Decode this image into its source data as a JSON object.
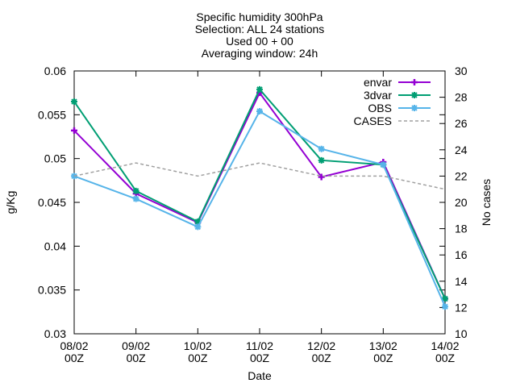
{
  "chart_data": {
    "type": "line",
    "title_lines": [
      "Specific humidity 300hPa",
      "Selection: ALL      24 stations",
      "Used 00 + 00",
      "Averaging window: 24h"
    ],
    "xlabel": "Date",
    "ylabel": "g/Kg",
    "y2label": "No cases",
    "categories": [
      [
        "08/02",
        "00Z"
      ],
      [
        "09/02",
        "00Z"
      ],
      [
        "10/02",
        "00Z"
      ],
      [
        "11/02",
        "00Z"
      ],
      [
        "12/02",
        "00Z"
      ],
      [
        "13/02",
        "00Z"
      ],
      [
        "14/02",
        "00Z"
      ]
    ],
    "ylim": [
      0.03,
      0.06
    ],
    "yticks": [
      "0.03",
      "0.035",
      "0.04",
      "0.045",
      "0.05",
      "0.055",
      "0.06"
    ],
    "y2lim": [
      10,
      30
    ],
    "y2ticks": [
      "10",
      "12",
      "14",
      "16",
      "18",
      "20",
      "22",
      "24",
      "26",
      "28",
      "30"
    ],
    "grid": false,
    "legend_position": "top-right",
    "series": [
      {
        "name": "envar",
        "color": "#9400d3",
        "values": [
          0.0532,
          0.046,
          0.0427,
          0.0575,
          0.0479,
          0.0496,
          0.034
        ],
        "marker": "plus",
        "axis": "y"
      },
      {
        "name": "3dvar",
        "color": "#009e73",
        "values": [
          0.0565,
          0.0463,
          0.0428,
          0.0579,
          0.0498,
          0.0493,
          0.034
        ],
        "marker": "star",
        "axis": "y"
      },
      {
        "name": "OBS",
        "color": "#56b4e9",
        "values": [
          0.048,
          0.0454,
          0.0422,
          0.0554,
          0.0511,
          0.0493,
          0.0331
        ],
        "marker": "star",
        "axis": "y"
      },
      {
        "name": "CASES",
        "color": "#a0a0a0",
        "values": [
          22,
          23,
          22,
          23,
          22,
          22,
          21
        ],
        "dashed": true,
        "axis": "y2"
      }
    ]
  }
}
